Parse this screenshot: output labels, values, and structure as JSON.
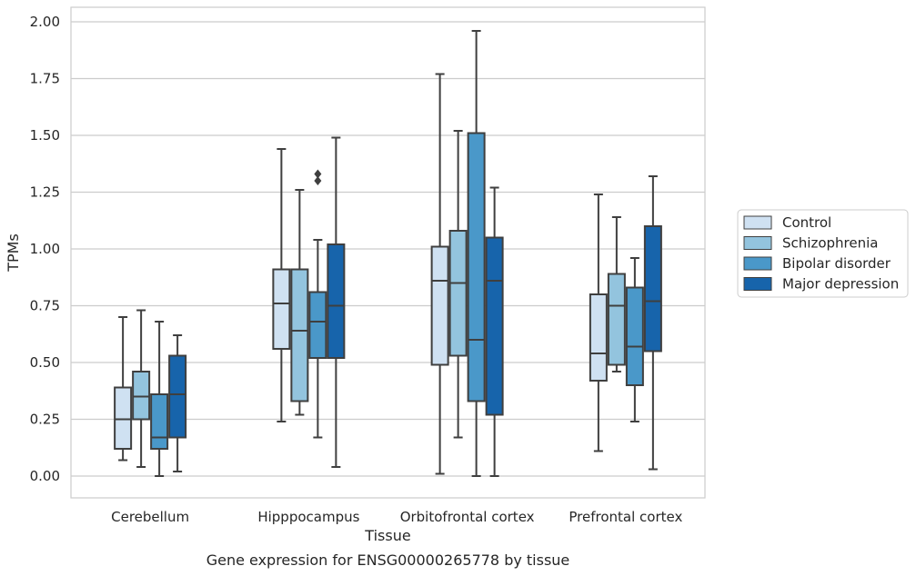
{
  "chart_data": {
    "type": "box",
    "title": "",
    "caption": "Gene expression for ENSG00000265778 by tissue",
    "xlabel": "Tissue",
    "ylabel": "TPMs",
    "ylim": [
      -0.1,
      2.06
    ],
    "yticks": [
      "0.00",
      "0.25",
      "0.50",
      "0.75",
      "1.00",
      "1.25",
      "1.50",
      "1.75",
      "2.00"
    ],
    "grid": "horizontal",
    "legend_position": "right",
    "categories": [
      "Cerebellum",
      "Hipppocampus",
      "Orbitofrontal cortex",
      "Prefrontal cortex"
    ],
    "series": [
      {
        "name": "Control",
        "color": "#cfe1f2",
        "boxes": [
          {
            "whisker_low": 0.07,
            "q1": 0.12,
            "median": 0.25,
            "q3": 0.39,
            "whisker_high": 0.7,
            "outliers": []
          },
          {
            "whisker_low": 0.24,
            "q1": 0.56,
            "median": 0.76,
            "q3": 0.91,
            "whisker_high": 1.44,
            "outliers": []
          },
          {
            "whisker_low": 0.01,
            "q1": 0.49,
            "median": 0.86,
            "q3": 1.01,
            "whisker_high": 1.77,
            "outliers": []
          },
          {
            "whisker_low": 0.11,
            "q1": 0.42,
            "median": 0.54,
            "q3": 0.8,
            "whisker_high": 1.24,
            "outliers": []
          }
        ]
      },
      {
        "name": "Schizophrenia",
        "color": "#93c4de",
        "boxes": [
          {
            "whisker_low": 0.04,
            "q1": 0.25,
            "median": 0.35,
            "q3": 0.46,
            "whisker_high": 0.73,
            "outliers": []
          },
          {
            "whisker_low": 0.27,
            "q1": 0.33,
            "median": 0.64,
            "q3": 0.91,
            "whisker_high": 1.26,
            "outliers": []
          },
          {
            "whisker_low": 0.17,
            "q1": 0.53,
            "median": 0.85,
            "q3": 1.08,
            "whisker_high": 1.52,
            "outliers": []
          },
          {
            "whisker_low": 0.46,
            "q1": 0.49,
            "median": 0.75,
            "q3": 0.89,
            "whisker_high": 1.14,
            "outliers": []
          }
        ]
      },
      {
        "name": "Bipolar disorder",
        "color": "#4a98c9",
        "boxes": [
          {
            "whisker_low": 0.0,
            "q1": 0.12,
            "median": 0.17,
            "q3": 0.36,
            "whisker_high": 0.68,
            "outliers": []
          },
          {
            "whisker_low": 0.17,
            "q1": 0.52,
            "median": 0.68,
            "q3": 0.81,
            "whisker_high": 1.04,
            "outliers": [
              1.3,
              1.33
            ]
          },
          {
            "whisker_low": 0.0,
            "q1": 0.33,
            "median": 0.6,
            "q3": 1.51,
            "whisker_high": 1.96,
            "outliers": []
          },
          {
            "whisker_low": 0.24,
            "q1": 0.4,
            "median": 0.57,
            "q3": 0.83,
            "whisker_high": 0.96,
            "outliers": []
          }
        ]
      },
      {
        "name": "Major depression",
        "color": "#1764ab",
        "boxes": [
          {
            "whisker_low": 0.02,
            "q1": 0.17,
            "median": 0.36,
            "q3": 0.53,
            "whisker_high": 0.62,
            "outliers": []
          },
          {
            "whisker_low": 0.04,
            "q1": 0.52,
            "median": 0.75,
            "q3": 1.02,
            "whisker_high": 1.49,
            "outliers": []
          },
          {
            "whisker_low": 0.0,
            "q1": 0.27,
            "median": 0.86,
            "q3": 1.05,
            "whisker_high": 1.27,
            "outliers": []
          },
          {
            "whisker_low": 0.03,
            "q1": 0.55,
            "median": 0.77,
            "q3": 1.1,
            "whisker_high": 1.32,
            "outliers": []
          }
        ]
      }
    ]
  }
}
